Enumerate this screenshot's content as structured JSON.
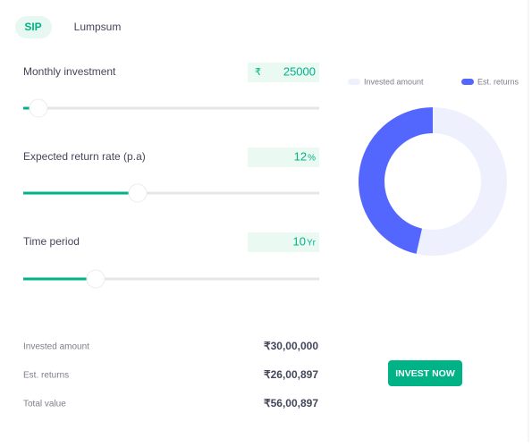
{
  "tabs": [
    "SIP",
    "Lumpsum"
  ],
  "active_tab": 0,
  "inputs": [
    {
      "label": "Monthly investment",
      "prefix": "₹",
      "value": 25000
    },
    {
      "label": "Expected return rate (p.a)",
      "value": 12,
      "suffix": "%"
    },
    {
      "label": "Time period",
      "value": 10,
      "suffix": "Yr"
    }
  ],
  "chart_data": {
    "type": "donut",
    "categories": [
      "Invested amount",
      "Est. returns"
    ],
    "values": [
      3000000,
      2600897
    ],
    "value_labels": [
      "₹30,00,000",
      "₹26,00,897"
    ],
    "colors": [
      "#eef0fd",
      "#5367ff"
    ]
  },
  "total": {
    "label": "Total value",
    "value": 5600897,
    "value_label": "₹56,00,897"
  },
  "button": "INVEST NOW"
}
